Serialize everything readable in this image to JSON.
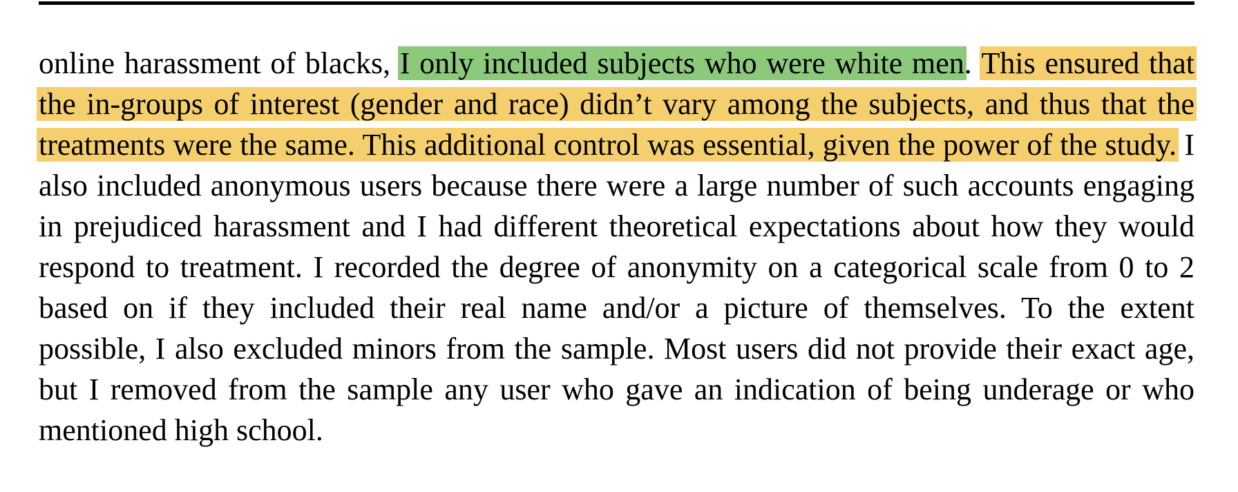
{
  "highlight_colors": {
    "green": "#8dc97b",
    "yellow": "#f5cf6e"
  },
  "paragraph": {
    "lead": "online harassment of blacks, ",
    "green_highlight": "I only included subjects who were white men",
    "period": ". ",
    "yellow_highlight": "This ensured that the in-groups of interest (gender and race) didn’t vary among the subjects, and thus that the treatments were the same. This additional control was essential, given the power of the study.",
    "rest": " I also included anonymous users because there were a large number of such accounts engaging in prejudiced harassment and I had different theoretical expectations about how they would respond to treatment. I recorded the degree of anonymity on a categorical scale from 0 to 2 based on if they included their real name and/or a picture of themselves. To the extent possible, I also excluded minors from the sample. Most users did not provide their exact age, but I removed from the sample any user who gave an indication of being underage or who mentioned high school."
  }
}
